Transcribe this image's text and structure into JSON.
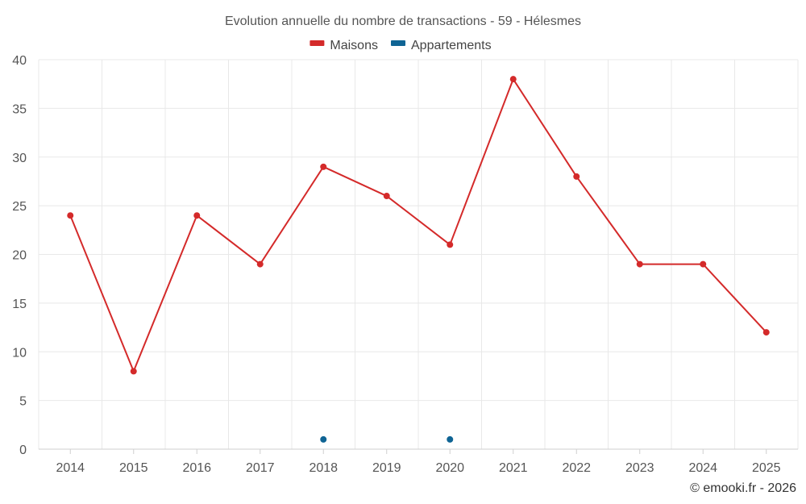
{
  "chart_data": {
    "type": "line",
    "title": "Evolution annuelle du nombre de transactions - 59 - Hélesmes",
    "categories": [
      "2014",
      "2015",
      "2016",
      "2017",
      "2018",
      "2019",
      "2020",
      "2021",
      "2022",
      "2023",
      "2024",
      "2025"
    ],
    "series": [
      {
        "name": "Maisons",
        "color": "#d42a2a",
        "values": [
          24,
          8,
          24,
          19,
          29,
          26,
          21,
          38,
          28,
          19,
          19,
          12
        ]
      },
      {
        "name": "Appartements",
        "color": "#0f6494",
        "values": [
          null,
          null,
          null,
          null,
          1,
          null,
          1,
          null,
          null,
          null,
          null,
          null
        ]
      }
    ],
    "ylim": [
      0,
      40
    ],
    "yticks": [
      0,
      5,
      10,
      15,
      20,
      25,
      30,
      35,
      40
    ],
    "grid": true,
    "legend_position": "top-center"
  },
  "credit": "© emooki.fr - 2026"
}
